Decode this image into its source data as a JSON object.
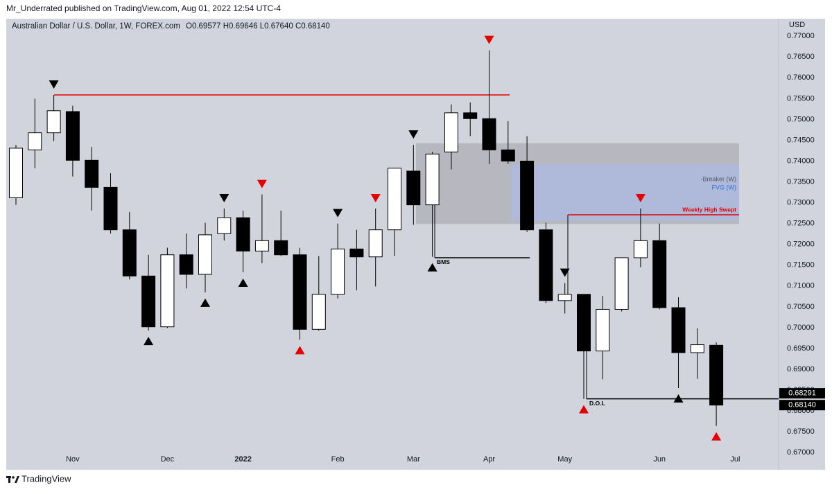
{
  "header": {
    "published": "Mr_Underrated published on TradingView.com, Aug 01, 2022 12:54 UTC-4"
  },
  "footer": {
    "brand": "TradingView"
  },
  "chart_data": {
    "type": "candlestick",
    "symbol": "Australian Dollar / U.S. Dollar, 1W, FOREX.com",
    "ohlc_readout": "O0.69577 H0.69646 L0.67640 C0.68140",
    "currency": "USD",
    "categories": [
      null,
      null,
      null,
      "Nov",
      null,
      null,
      null,
      null,
      "Dec",
      null,
      null,
      null,
      "2022",
      null,
      null,
      null,
      null,
      "Feb",
      null,
      null,
      null,
      "Mar",
      null,
      null,
      null,
      "Apr",
      null,
      null,
      null,
      "May",
      null,
      null,
      null,
      null,
      "Jun",
      null,
      null,
      null,
      "Jul",
      null,
      null
    ],
    "open": [
      0.7312,
      0.7427,
      0.7468,
      0.7519,
      0.7402,
      0.7337,
      0.7235,
      0.7124,
      0.7002,
      0.7175,
      0.7128,
      0.7226,
      0.7264,
      0.7184,
      0.7209,
      0.7175,
      0.6996,
      0.708,
      0.7189,
      0.717,
      0.7235,
      0.7376,
      0.7295,
      0.7422,
      0.7516,
      0.7502,
      0.7427,
      0.74,
      0.7235,
      0.7065,
      0.708,
      0.6944,
      0.7044,
      0.7168,
      0.7209,
      0.7048,
      0.694,
      0.69577,
      null,
      null,
      null
    ],
    "high": [
      0.7439,
      0.755,
      0.7559,
      0.7533,
      0.7434,
      0.7371,
      0.7278,
      0.7175,
      0.7192,
      0.7226,
      0.7252,
      0.7286,
      0.7281,
      0.732,
      0.7281,
      0.7192,
      0.7172,
      0.725,
      0.7235,
      0.7286,
      0.7383,
      0.7439,
      0.7422,
      0.7536,
      0.7541,
      0.7666,
      0.7496,
      0.746,
      0.7252,
      0.7107,
      0.708,
      0.7076,
      0.7168,
      0.7286,
      0.725,
      0.7073,
      0.6998,
      0.69646,
      null,
      null,
      null
    ],
    "low": [
      0.7295,
      0.7383,
      0.7448,
      0.7363,
      0.7281,
      0.7226,
      0.7116,
      0.6993,
      0.6999,
      0.7094,
      0.7085,
      0.7209,
      0.7133,
      0.7155,
      0.7172,
      0.6971,
      0.6993,
      0.707,
      0.709,
      0.7099,
      0.7172,
      0.7247,
      0.717,
      0.738,
      0.746,
      0.7393,
      0.7393,
      0.723,
      0.7059,
      0.7034,
      0.6829,
      0.6876,
      0.7039,
      0.7145,
      0.7044,
      0.6855,
      0.6877,
      0.6764,
      null,
      null,
      null
    ],
    "close": [
      0.7431,
      0.7468,
      0.7521,
      0.7402,
      0.7337,
      0.7235,
      0.7124,
      0.7002,
      0.7175,
      0.7128,
      0.7223,
      0.7264,
      0.7184,
      0.7209,
      0.7175,
      0.6996,
      0.708,
      0.7189,
      0.717,
      0.7235,
      0.7383,
      0.7295,
      0.7417,
      0.7516,
      0.7502,
      0.7427,
      0.74,
      0.7235,
      0.7065,
      0.708,
      0.6944,
      0.7044,
      0.7168,
      0.7209,
      0.7048,
      0.694,
      0.6959,
      0.6814,
      null,
      null,
      null
    ],
    "up_color": "#ffffff",
    "down_color": "#000000",
    "wick_color": "#000000",
    "markers": [
      null,
      null,
      {
        "direction": "down",
        "color": "#000000"
      },
      null,
      null,
      null,
      null,
      {
        "direction": "up",
        "color": "#000000"
      },
      null,
      null,
      {
        "direction": "up",
        "color": "#000000"
      },
      {
        "direction": "down",
        "color": "#000000"
      },
      {
        "direction": "up",
        "color": "#000000"
      },
      {
        "direction": "down",
        "color": "#e60000"
      },
      null,
      {
        "direction": "up",
        "color": "#e60000"
      },
      null,
      {
        "direction": "down",
        "color": "#000000"
      },
      null,
      {
        "direction": "down",
        "color": "#e60000"
      },
      null,
      {
        "direction": "down",
        "color": "#000000"
      },
      {
        "direction": "up",
        "color": "#000000"
      },
      null,
      null,
      {
        "direction": "down",
        "color": "#e60000"
      },
      null,
      null,
      null,
      {
        "direction": "down",
        "color": "#000000"
      },
      {
        "direction": "up",
        "color": "#e60000"
      },
      null,
      null,
      {
        "direction": "down",
        "color": "#e60000"
      },
      null,
      {
        "direction": "up",
        "color": "#000000"
      },
      null,
      {
        "direction": "up",
        "color": "#e60000"
      },
      null,
      null,
      null
    ],
    "zones": [
      {
        "top": 0.7443,
        "bottom": 0.7249,
        "color": "rgba(150,150,155,0.45)",
        "label": "-Breaker (W)",
        "label_color": "#555a66"
      },
      {
        "top": 0.7393,
        "bottom": 0.7257,
        "color": "rgba(170,185,235,0.6)",
        "label": "FVG (W)",
        "label_color": "#2f6fe0"
      }
    ],
    "levels": [
      {
        "price": 0.7559,
        "color": "#e60000"
      },
      {
        "price": 0.7271,
        "color": "#e60000",
        "label": "Weekly High Swept"
      },
      {
        "price": 0.7168,
        "color": "#000000",
        "label": "BMS"
      },
      {
        "price": 0.68291,
        "color": "#000000",
        "label": "D.O.L"
      }
    ],
    "price_tags": [
      {
        "value": 0.68291,
        "label": "0.68291"
      },
      {
        "value": 0.6814,
        "label": "0.68140"
      }
    ],
    "ylim": [
      0.6697,
      0.7737
    ],
    "yticks": [
      {
        "value": 0.67,
        "label": "0.67000"
      },
      {
        "value": 0.675,
        "label": "0.67500"
      },
      {
        "value": 0.68,
        "label": "0.68000"
      },
      {
        "value": 0.685,
        "label": "0.68500"
      },
      {
        "value": 0.69,
        "label": "0.69000"
      },
      {
        "value": 0.695,
        "label": "0.69500"
      },
      {
        "value": 0.7,
        "label": "0.70000"
      },
      {
        "value": 0.705,
        "label": "0.70500"
      },
      {
        "value": 0.71,
        "label": "0.71000"
      },
      {
        "value": 0.715,
        "label": "0.71500"
      },
      {
        "value": 0.72,
        "label": "0.72000"
      },
      {
        "value": 0.725,
        "label": "0.72500"
      },
      {
        "value": 0.73,
        "label": "0.73000"
      },
      {
        "value": 0.735,
        "label": "0.73500"
      },
      {
        "value": 0.74,
        "label": "0.74000"
      },
      {
        "value": 0.745,
        "label": "0.74500"
      },
      {
        "value": 0.75,
        "label": "0.75000"
      },
      {
        "value": 0.755,
        "label": "0.75500"
      },
      {
        "value": 0.76,
        "label": "0.76000"
      },
      {
        "value": 0.765,
        "label": "0.76500"
      },
      {
        "value": 0.77,
        "label": "0.77000"
      }
    ],
    "grid": false
  }
}
